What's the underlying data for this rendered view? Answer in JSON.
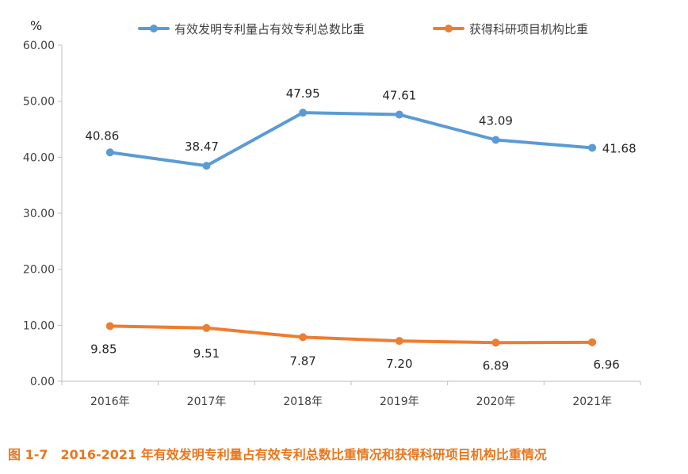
{
  "chart_data": {
    "type": "line",
    "title": "",
    "ylabel": "%",
    "xlabel": "",
    "categories": [
      "2016年",
      "2017年",
      "2018年",
      "2019年",
      "2020年",
      "2021年"
    ],
    "ylim": [
      0,
      60
    ],
    "yticks": [
      "0.00",
      "10.00",
      "20.00",
      "30.00",
      "40.00",
      "50.00",
      "60.00"
    ],
    "grid": false,
    "legend_position": "top",
    "series": [
      {
        "name": "有效发明专利量占有效专利总数比重",
        "color": "#5b9bd5",
        "values": [
          40.86,
          38.47,
          47.95,
          47.61,
          43.09,
          41.68
        ],
        "labels": [
          "40.86",
          "38.47",
          "47.95",
          "47.61",
          "43.09",
          "41.68"
        ]
      },
      {
        "name": "获得科研项目机构比重",
        "color": "#ed7d31",
        "values": [
          9.85,
          9.51,
          7.87,
          7.2,
          6.89,
          6.96
        ],
        "labels": [
          "9.85",
          "9.51",
          "7.87",
          "7.20",
          "6.89",
          "6.96"
        ]
      }
    ]
  },
  "caption": "图 1-7　2016-2021 年有效发明专利量占有效专利总数比重情况和获得科研项目机构比重情况"
}
